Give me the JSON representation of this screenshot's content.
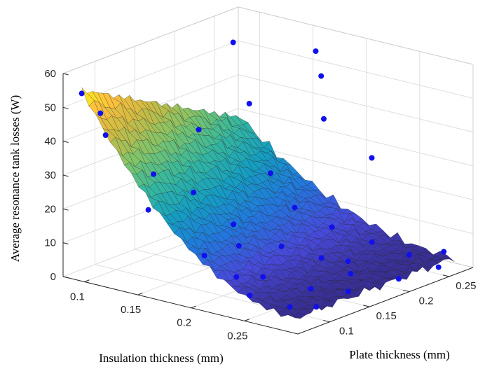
{
  "chart_data": {
    "type": "surface",
    "xlabel": "Insulation thickness (mm)",
    "ylabel": "Plate thickness (mm)",
    "zlabel": "Average resonance tank losses (W)",
    "xlim": [
      0.08,
      0.3
    ],
    "ylim": [
      0.06,
      0.28
    ],
    "zlim": [
      0,
      60
    ],
    "x_ticks": [
      "0.1",
      "0.15",
      "0.2",
      "0.25"
    ],
    "y_ticks": [
      "0.1",
      "0.15",
      "0.2",
      "0.25"
    ],
    "z_ticks": [
      "0",
      "10",
      "20",
      "30",
      "40",
      "50",
      "60"
    ],
    "grid": true,
    "colormap": "parula",
    "marker_color": "#1010ee",
    "surface": {
      "x_range": [
        0.09,
        0.29
      ],
      "y_range": [
        0.07,
        0.27
      ],
      "model": "z = 3 + 52*(0.29-x)^2/0.04 * (0.5 + 0.5*(0.27-y)/0.2)"
    },
    "points": [
      {
        "x": 0.09,
        "y": 0.07,
        "z": 54
      },
      {
        "x": 0.1,
        "y": 0.08,
        "z": 48
      },
      {
        "x": 0.09,
        "y": 0.1,
        "z": 39
      },
      {
        "x": 0.12,
        "y": 0.22,
        "z": 58
      },
      {
        "x": 0.15,
        "y": 0.2,
        "z": 44
      },
      {
        "x": 0.18,
        "y": 0.25,
        "z": 50
      },
      {
        "x": 0.16,
        "y": 0.27,
        "z": 54
      },
      {
        "x": 0.14,
        "y": 0.15,
        "z": 40
      },
      {
        "x": 0.19,
        "y": 0.24,
        "z": 39
      },
      {
        "x": 0.22,
        "y": 0.26,
        "z": 28
      },
      {
        "x": 0.12,
        "y": 0.12,
        "z": 28
      },
      {
        "x": 0.13,
        "y": 0.1,
        "z": 20
      },
      {
        "x": 0.2,
        "y": 0.12,
        "z": 13
      },
      {
        "x": 0.17,
        "y": 0.2,
        "z": 25
      },
      {
        "x": 0.15,
        "y": 0.13,
        "z": 24
      },
      {
        "x": 0.22,
        "y": 0.21,
        "z": 12
      },
      {
        "x": 0.24,
        "y": 0.17,
        "z": 8
      },
      {
        "x": 0.25,
        "y": 0.22,
        "z": 9
      },
      {
        "x": 0.27,
        "y": 0.24,
        "z": 5
      },
      {
        "x": 0.28,
        "y": 0.27,
        "z": 4
      },
      {
        "x": 0.26,
        "y": 0.13,
        "z": 4
      },
      {
        "x": 0.28,
        "y": 0.15,
        "z": 3
      },
      {
        "x": 0.29,
        "y": 0.2,
        "z": 3
      },
      {
        "x": 0.23,
        "y": 0.11,
        "z": 7
      },
      {
        "x": 0.21,
        "y": 0.16,
        "z": 10
      },
      {
        "x": 0.18,
        "y": 0.14,
        "z": 16
      },
      {
        "x": 0.2,
        "y": 0.19,
        "z": 18
      },
      {
        "x": 0.25,
        "y": 0.19,
        "z": 6
      },
      {
        "x": 0.22,
        "y": 0.09,
        "z": 8
      },
      {
        "x": 0.27,
        "y": 0.09,
        "z": 3
      },
      {
        "x": 0.24,
        "y": 0.08,
        "z": 5
      },
      {
        "x": 0.19,
        "y": 0.09,
        "z": 12
      },
      {
        "x": 0.26,
        "y": 0.18,
        "z": 4
      },
      {
        "x": 0.28,
        "y": 0.11,
        "z": 2
      },
      {
        "x": 0.29,
        "y": 0.25,
        "z": 2
      }
    ]
  }
}
